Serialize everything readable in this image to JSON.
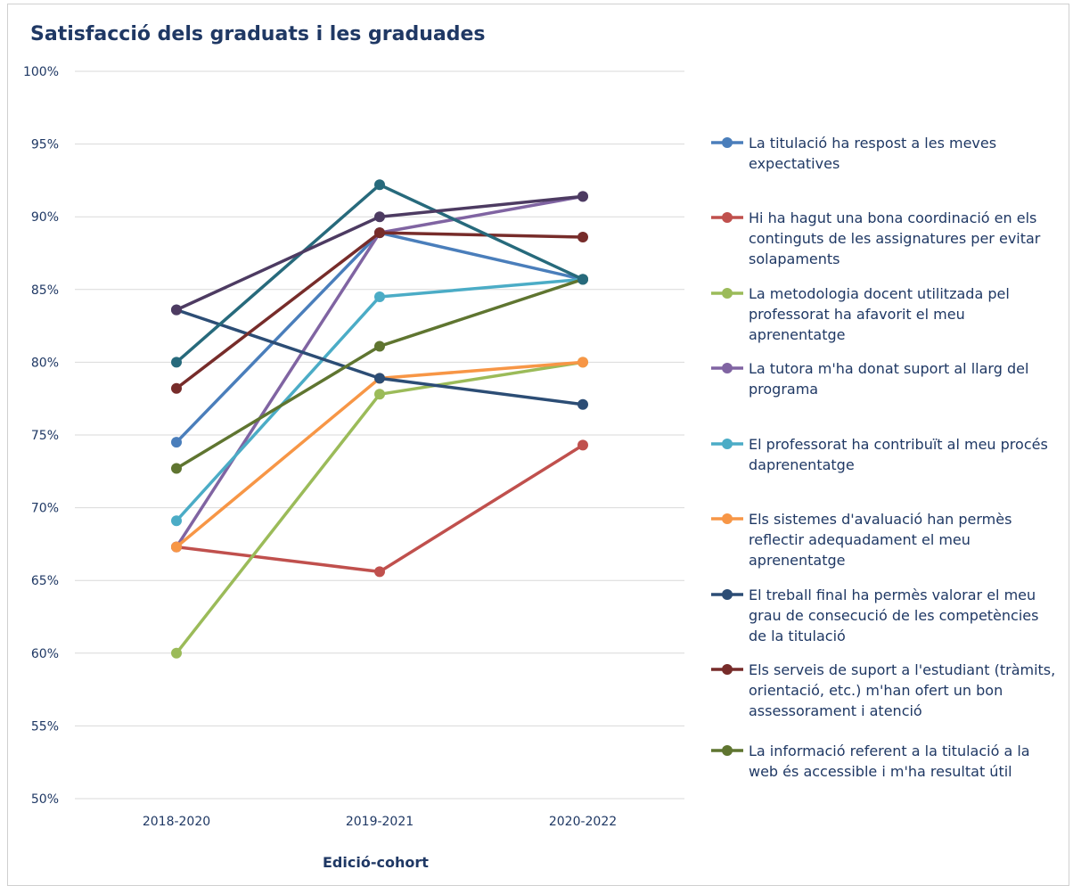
{
  "chart_data": {
    "type": "line",
    "title": "Satisfacció dels graduats i les graduades",
    "xlabel": "Edició-cohort",
    "ylabel": "",
    "categories": [
      "2018-2020",
      "2019-2021",
      "2020-2022"
    ],
    "ylim": [
      50,
      100
    ],
    "yticks": [
      "50%",
      "55%",
      "60%",
      "65%",
      "70%",
      "75%",
      "80%",
      "85%",
      "90%",
      "95%",
      "100%"
    ],
    "grid": true,
    "legend_position": "right",
    "series": [
      {
        "name": "La titulació ha respost a les meves expectatives",
        "color": "#4a7ebb",
        "values": [
          74.5,
          88.9,
          85.7
        ]
      },
      {
        "name": "Hi ha hagut una bona coordinació en els continguts de les assignatures per evitar solapaments",
        "color": "#c0504d",
        "values": [
          67.3,
          65.6,
          74.3
        ]
      },
      {
        "name": "La metodologia docent utilitzada pel professorat ha afavorit el meu aprenentatge",
        "color": "#9bbb59",
        "values": [
          60.0,
          77.8,
          80.0
        ]
      },
      {
        "name": "La tutora m'ha donat suport al llarg del programa",
        "color": "#8064a2",
        "values": [
          67.3,
          88.9,
          91.4
        ]
      },
      {
        "name": "El professorat ha contribuït al meu procés daprenentatge",
        "color": "#4bacc6",
        "values": [
          69.1,
          84.5,
          85.7
        ]
      },
      {
        "name": "Els sistemes d'avaluació han permès reflectir adequadament el meu aprenentatge",
        "color": "#f79646",
        "values": [
          67.3,
          78.9,
          80.0
        ]
      },
      {
        "name": "El treball final ha permès valorar el meu grau de consecució de les competències de la titulació",
        "color": "#2c4d75",
        "values": [
          83.6,
          78.9,
          77.1
        ]
      },
      {
        "name": "Els serveis de suport a l'estudiant (tràmits, orientació, etc.) m'han ofert un bon assessorament i atenció",
        "color": "#772c2a",
        "values": [
          78.2,
          88.9,
          88.6
        ]
      },
      {
        "name": "La informació referent a la titulació a la web és accessible i m'ha resultat útil",
        "color": "#5f7530",
        "values": [
          72.7,
          81.1,
          85.7
        ]
      },
      {
        "name": "",
        "color": "#276a7c",
        "values": [
          80.0,
          92.2,
          85.7
        ]
      },
      {
        "name": "",
        "color": "#4d3b62",
        "values": [
          83.6,
          90.0,
          91.4
        ]
      }
    ]
  }
}
